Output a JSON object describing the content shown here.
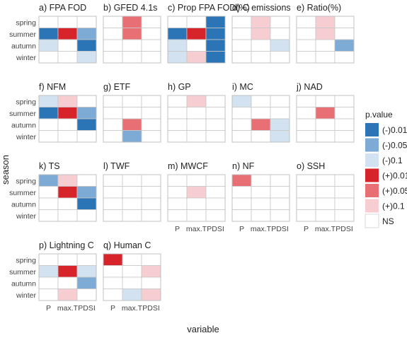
{
  "chart_data": {
    "type": "heatmap",
    "xlabel": "variable",
    "ylabel": "season",
    "x_categories": [
      "P",
      "max.T",
      "PDSI"
    ],
    "y_categories": [
      "spring",
      "summer",
      "autumn",
      "winter"
    ],
    "legend": {
      "title": "p.value",
      "position": "right",
      "levels": [
        {
          "label": "(-)0.01",
          "color": "#2b74b5"
        },
        {
          "label": "(-)0.05",
          "color": "#7eabd6"
        },
        {
          "label": "(-)0.1",
          "color": "#d2e2f0"
        },
        {
          "label": "(+)0.01",
          "color": "#d7242b"
        },
        {
          "label": "(+)0.05",
          "color": "#e87074"
        },
        {
          "label": "(+)0.1",
          "color": "#f6cdd0"
        },
        {
          "label": "NS",
          "color": "#ffffff"
        }
      ]
    },
    "panels": [
      {
        "title": "a) FPA FOD",
        "cells": {
          "summer": {
            "P": "(-)0.01",
            "max.T": "(+)0.01",
            "PDSI": "(-)0.05"
          },
          "autumn": {
            "P": "(-)0.1",
            "PDSI": "(-)0.01"
          },
          "winter": {
            "PDSI": "(-)0.1"
          }
        }
      },
      {
        "title": "b) GFED 4.1s",
        "cells": {
          "spring": {
            "max.T": "(+)0.05"
          },
          "summer": {
            "max.T": "(+)0.05"
          }
        }
      },
      {
        "title": "c) Prop FPA FOD(%)",
        "cells": {
          "spring": {
            "PDSI": "(-)0.01"
          },
          "summer": {
            "P": "(-)0.01",
            "max.T": "(+)0.01",
            "PDSI": "(-)0.01"
          },
          "autumn": {
            "P": "(-)0.1",
            "PDSI": "(-)0.01"
          },
          "winter": {
            "P": "(-)0.1",
            "max.T": "(+)0.1",
            "PDSI": "(-)0.01"
          }
        }
      },
      {
        "title": "d) C emissions",
        "cells": {
          "spring": {
            "max.T": "(+)0.1"
          },
          "summer": {
            "max.T": "(+)0.1"
          },
          "autumn": {
            "PDSI": "(-)0.1"
          }
        }
      },
      {
        "title": "e) Ratio(%)",
        "cells": {
          "spring": {
            "max.T": "(+)0.1"
          },
          "summer": {
            "max.T": "(+)0.1"
          },
          "autumn": {
            "PDSI": "(-)0.05"
          }
        }
      },
      {
        "title": "f)  NFM",
        "cells": {
          "spring": {
            "P": "(-)0.1",
            "max.T": "(+)0.1"
          },
          "summer": {
            "P": "(-)0.01",
            "max.T": "(+)0.01",
            "PDSI": "(-)0.05"
          },
          "autumn": {
            "PDSI": "(-)0.01"
          }
        }
      },
      {
        "title": "g)  ETF",
        "cells": {
          "autumn": {
            "max.T": "(+)0.05"
          },
          "winter": {
            "max.T": "(-)0.05"
          }
        }
      },
      {
        "title": "h)  GP",
        "cells": {
          "spring": {
            "max.T": "(+)0.1"
          }
        }
      },
      {
        "title": "i)  MC",
        "cells": {
          "spring": {
            "P": "(-)0.1"
          },
          "autumn": {
            "max.T": "(+)0.05",
            "PDSI": "(-)0.1"
          },
          "winter": {
            "PDSI": "(-)0.1"
          }
        }
      },
      {
        "title": "j)  NAD",
        "cells": {
          "summer": {
            "max.T": "(+)0.05"
          }
        }
      },
      {
        "title": "k)  TS",
        "cells": {
          "spring": {
            "P": "(-)0.05",
            "max.T": "(+)0.1"
          },
          "summer": {
            "max.T": "(+)0.01",
            "PDSI": "(-)0.05"
          },
          "autumn": {
            "PDSI": "(-)0.01"
          }
        }
      },
      {
        "title": "l)  TWF",
        "cells": {}
      },
      {
        "title": "m)  MWCF",
        "cells": {
          "summer": {
            "max.T": "(+)0.1"
          }
        }
      },
      {
        "title": "n)  NF",
        "cells": {
          "spring": {
            "P": "(+)0.05"
          }
        }
      },
      {
        "title": "o)  SSH",
        "cells": {}
      },
      {
        "title": "p) Lightning C",
        "cells": {
          "summer": {
            "P": "(-)0.1",
            "max.T": "(+)0.01",
            "PDSI": "(-)0.1"
          },
          "autumn": {
            "PDSI": "(-)0.05"
          },
          "winter": {
            "max.T": "(+)0.1"
          }
        }
      },
      {
        "title": "q)  Human C",
        "cells": {
          "spring": {
            "P": "(+)0.01"
          },
          "summer": {
            "PDSI": "(+)0.1"
          },
          "winter": {
            "max.T": "(-)0.1",
            "PDSI": "(+)0.1"
          }
        }
      }
    ]
  }
}
